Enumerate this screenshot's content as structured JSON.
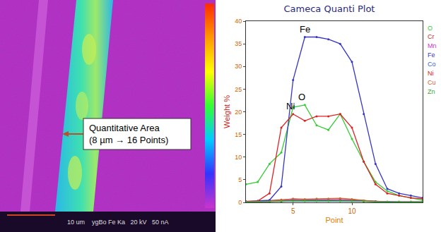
{
  "chart_data": {
    "type": "line",
    "title": "Cameca Quanti Plot",
    "x_label": "Point",
    "y_label": "Weight %",
    "x": [
      1,
      2,
      3,
      4,
      5,
      6,
      7,
      8,
      9,
      10,
      11,
      12,
      13,
      14,
      15,
      16
    ],
    "xlim": [
      1,
      16
    ],
    "xticks": [
      5,
      10
    ],
    "ylim": [
      0,
      40
    ],
    "yticks": [
      0,
      5,
      10,
      15,
      20,
      25,
      30,
      35,
      40
    ],
    "grid": false,
    "legend": "right",
    "annotations": [
      "Fe",
      "O",
      "Ni"
    ],
    "series": [
      {
        "name": "O",
        "color": "#33cc33",
        "values": [
          4,
          4.5,
          8.5,
          11,
          21,
          21.5,
          17,
          16,
          19.5,
          14,
          9,
          4.5,
          2.5,
          1.5,
          1,
          0.5
        ]
      },
      {
        "name": "Cr",
        "color": "#c03030",
        "values": [
          0.2,
          0.2,
          0.4,
          0.6,
          0.7,
          0.6,
          0.6,
          0.7,
          0.7,
          0.6,
          0.4,
          0.2,
          0.1,
          0.1,
          0.1,
          0.1
        ]
      },
      {
        "name": "Mn",
        "color": "#cc33cc",
        "values": [
          0.1,
          0.1,
          0.2,
          0.4,
          0.5,
          0.4,
          0.5,
          0.5,
          0.5,
          0.4,
          0.3,
          0.2,
          0.1,
          0.1,
          0.1,
          0.1
        ]
      },
      {
        "name": "Fe",
        "color": "#3535c8",
        "values": [
          0.2,
          0.3,
          0.5,
          3.5,
          27,
          36.5,
          36.5,
          36,
          35,
          31,
          19.5,
          8.5,
          3,
          2,
          1.5,
          1
        ]
      },
      {
        "name": "Co",
        "color": "#3366cc",
        "values": [
          0.1,
          0.1,
          0.2,
          0.3,
          0.4,
          0.4,
          0.4,
          0.4,
          0.4,
          0.4,
          0.3,
          0.2,
          0.1,
          0.1,
          0.1,
          0.1
        ]
      },
      {
        "name": "Ni",
        "color": "#e02020",
        "values": [
          0.2,
          0.3,
          2,
          16.5,
          19.5,
          18,
          19,
          19,
          19.5,
          16.5,
          9,
          4,
          2,
          1.5,
          1,
          0.8
        ]
      },
      {
        "name": "Cu",
        "color": "#cc6633",
        "values": [
          0.1,
          0.1,
          0.2,
          0.5,
          0.8,
          0.7,
          0.8,
          0.8,
          0.9,
          0.7,
          0.4,
          0.2,
          0.1,
          0.1,
          0.1,
          0.1
        ]
      },
      {
        "name": "Zn",
        "color": "#33aa33",
        "values": [
          0.1,
          0.1,
          0.1,
          0.2,
          0.3,
          0.3,
          0.3,
          0.3,
          0.3,
          0.3,
          0.2,
          0.1,
          0.1,
          0.1,
          0.1,
          0.1
        ]
      }
    ]
  },
  "image_panel": {
    "callout_lines": [
      "Quantitative Area",
      "(8 µm → 16 Points)"
    ],
    "scale_bar": "10 um",
    "footer": "ygBo Fe Ka   20 kV   50 nA"
  }
}
